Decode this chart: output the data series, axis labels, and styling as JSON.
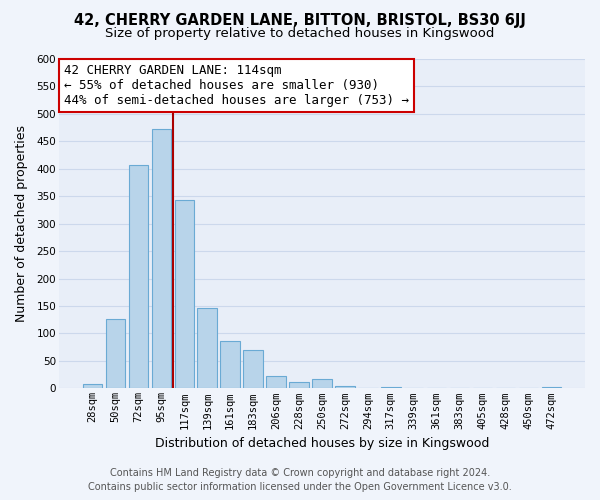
{
  "title": "42, CHERRY GARDEN LANE, BITTON, BRISTOL, BS30 6JJ",
  "subtitle": "Size of property relative to detached houses in Kingswood",
  "xlabel": "Distribution of detached houses by size in Kingswood",
  "ylabel": "Number of detached properties",
  "bar_labels": [
    "28sqm",
    "50sqm",
    "72sqm",
    "95sqm",
    "117sqm",
    "139sqm",
    "161sqm",
    "183sqm",
    "206sqm",
    "228sqm",
    "250sqm",
    "272sqm",
    "294sqm",
    "317sqm",
    "339sqm",
    "361sqm",
    "383sqm",
    "405sqm",
    "428sqm",
    "450sqm",
    "472sqm"
  ],
  "bar_values": [
    8,
    127,
    407,
    473,
    343,
    146,
    87,
    70,
    23,
    12,
    17,
    5,
    1,
    2,
    0,
    1,
    0,
    0,
    0,
    0,
    2
  ],
  "bar_color": "#b8d4ea",
  "bar_edge_color": "#6aaad4",
  "vline_index": 3.5,
  "vline_color": "#aa0000",
  "annotation_line1": "42 CHERRY GARDEN LANE: 114sqm",
  "annotation_line2": "← 55% of detached houses are smaller (930)",
  "annotation_line3": "44% of semi-detached houses are larger (753) →",
  "annotation_box_facecolor": "white",
  "annotation_box_edgecolor": "#cc0000",
  "ylim": [
    0,
    600
  ],
  "yticks": [
    0,
    50,
    100,
    150,
    200,
    250,
    300,
    350,
    400,
    450,
    500,
    550,
    600
  ],
  "footer_line1": "Contains HM Land Registry data © Crown copyright and database right 2024.",
  "footer_line2": "Contains public sector information licensed under the Open Government Licence v3.0.",
  "plot_bg_color": "#e8eef8",
  "fig_bg_color": "#f0f4fb",
  "grid_color": "#ccd8ec",
  "title_fontsize": 10.5,
  "subtitle_fontsize": 9.5,
  "xlabel_fontsize": 9,
  "ylabel_fontsize": 9,
  "tick_fontsize": 7.5,
  "annotation_fontsize": 9,
  "footer_fontsize": 7
}
